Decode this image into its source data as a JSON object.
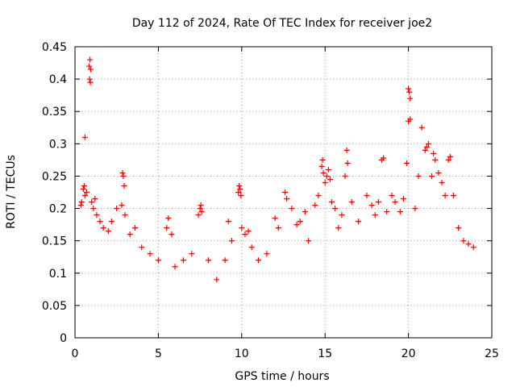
{
  "chart_data": {
    "type": "scatter",
    "title": "Day 112 of 2024, Rate Of TEC Index for receiver joe2",
    "xlabel": "GPS time / hours",
    "ylabel": "ROTI / TECUs",
    "xlim": [
      0,
      25
    ],
    "ylim": [
      0,
      0.45
    ],
    "xticks": [
      0,
      5,
      10,
      15,
      20,
      25
    ],
    "xtick_labels": [
      "0",
      "5",
      "10",
      "15",
      "20",
      "25"
    ],
    "yticks": [
      0,
      0.05,
      0.1,
      0.15,
      0.2,
      0.25,
      0.3,
      0.35,
      0.4,
      0.45
    ],
    "ytick_labels": [
      "0",
      "0.05",
      "0.1",
      "0.15",
      "0.2",
      "0.25",
      "0.3",
      "0.35",
      "0.4",
      "0.45"
    ],
    "grid": true,
    "marker": "+",
    "color": "#ff0000",
    "series": [
      {
        "name": "ROTI",
        "points": [
          [
            0.5,
            0.23
          ],
          [
            0.55,
            0.235
          ],
          [
            0.6,
            0.22
          ],
          [
            0.7,
            0.225
          ],
          [
            0.35,
            0.205
          ],
          [
            0.4,
            0.21
          ],
          [
            0.85,
            0.42
          ],
          [
            0.9,
            0.43
          ],
          [
            0.95,
            0.415
          ],
          [
            0.88,
            0.4
          ],
          [
            0.92,
            0.395
          ],
          [
            0.6,
            0.31
          ],
          [
            1.0,
            0.21
          ],
          [
            1.1,
            0.2
          ],
          [
            1.2,
            0.215
          ],
          [
            1.3,
            0.19
          ],
          [
            1.5,
            0.18
          ],
          [
            1.7,
            0.17
          ],
          [
            2.0,
            0.165
          ],
          [
            2.2,
            0.18
          ],
          [
            2.5,
            0.2
          ],
          [
            2.8,
            0.205
          ],
          [
            2.85,
            0.255
          ],
          [
            2.9,
            0.25
          ],
          [
            2.95,
            0.235
          ],
          [
            3.0,
            0.19
          ],
          [
            3.3,
            0.16
          ],
          [
            3.6,
            0.17
          ],
          [
            4.0,
            0.14
          ],
          [
            4.5,
            0.13
          ],
          [
            5.0,
            0.12
          ],
          [
            5.5,
            0.17
          ],
          [
            5.6,
            0.185
          ],
          [
            5.8,
            0.16
          ],
          [
            6.0,
            0.11
          ],
          [
            6.5,
            0.12
          ],
          [
            7.0,
            0.13
          ],
          [
            7.4,
            0.19
          ],
          [
            7.5,
            0.2
          ],
          [
            7.55,
            0.205
          ],
          [
            7.6,
            0.195
          ],
          [
            8.0,
            0.12
          ],
          [
            8.5,
            0.09
          ],
          [
            9.0,
            0.12
          ],
          [
            9.2,
            0.18
          ],
          [
            9.4,
            0.15
          ],
          [
            9.8,
            0.225
          ],
          [
            9.85,
            0.235
          ],
          [
            9.9,
            0.23
          ],
          [
            9.95,
            0.22
          ],
          [
            10.0,
            0.17
          ],
          [
            10.2,
            0.16
          ],
          [
            10.4,
            0.165
          ],
          [
            10.6,
            0.14
          ],
          [
            11.0,
            0.12
          ],
          [
            11.5,
            0.13
          ],
          [
            12.0,
            0.185
          ],
          [
            12.2,
            0.17
          ],
          [
            12.6,
            0.225
          ],
          [
            12.7,
            0.215
          ],
          [
            13.0,
            0.2
          ],
          [
            13.3,
            0.175
          ],
          [
            13.5,
            0.18
          ],
          [
            13.8,
            0.195
          ],
          [
            14.0,
            0.15
          ],
          [
            14.4,
            0.205
          ],
          [
            14.6,
            0.22
          ],
          [
            14.8,
            0.265
          ],
          [
            14.85,
            0.275
          ],
          [
            14.9,
            0.255
          ],
          [
            15.0,
            0.24
          ],
          [
            15.1,
            0.25
          ],
          [
            15.2,
            0.26
          ],
          [
            15.3,
            0.245
          ],
          [
            15.4,
            0.21
          ],
          [
            15.6,
            0.2
          ],
          [
            15.8,
            0.17
          ],
          [
            16.0,
            0.19
          ],
          [
            16.2,
            0.25
          ],
          [
            16.3,
            0.29
          ],
          [
            16.35,
            0.27
          ],
          [
            16.6,
            0.21
          ],
          [
            17.0,
            0.18
          ],
          [
            17.5,
            0.22
          ],
          [
            17.8,
            0.205
          ],
          [
            18.0,
            0.19
          ],
          [
            18.2,
            0.21
          ],
          [
            18.4,
            0.275
          ],
          [
            18.5,
            0.278
          ],
          [
            18.7,
            0.195
          ],
          [
            19.0,
            0.22
          ],
          [
            19.2,
            0.21
          ],
          [
            19.5,
            0.195
          ],
          [
            19.7,
            0.215
          ],
          [
            19.9,
            0.27
          ],
          [
            20.0,
            0.385
          ],
          [
            20.05,
            0.38
          ],
          [
            20.1,
            0.37
          ],
          [
            20.0,
            0.335
          ],
          [
            20.1,
            0.338
          ],
          [
            20.4,
            0.2
          ],
          [
            20.6,
            0.25
          ],
          [
            20.8,
            0.325
          ],
          [
            21.0,
            0.29
          ],
          [
            21.1,
            0.295
          ],
          [
            21.2,
            0.3
          ],
          [
            21.4,
            0.25
          ],
          [
            21.5,
            0.285
          ],
          [
            21.6,
            0.275
          ],
          [
            21.8,
            0.255
          ],
          [
            22.0,
            0.24
          ],
          [
            22.2,
            0.22
          ],
          [
            22.4,
            0.275
          ],
          [
            22.5,
            0.28
          ],
          [
            22.7,
            0.22
          ],
          [
            23.0,
            0.17
          ],
          [
            23.3,
            0.15
          ],
          [
            23.6,
            0.145
          ],
          [
            23.9,
            0.14
          ]
        ]
      }
    ]
  }
}
